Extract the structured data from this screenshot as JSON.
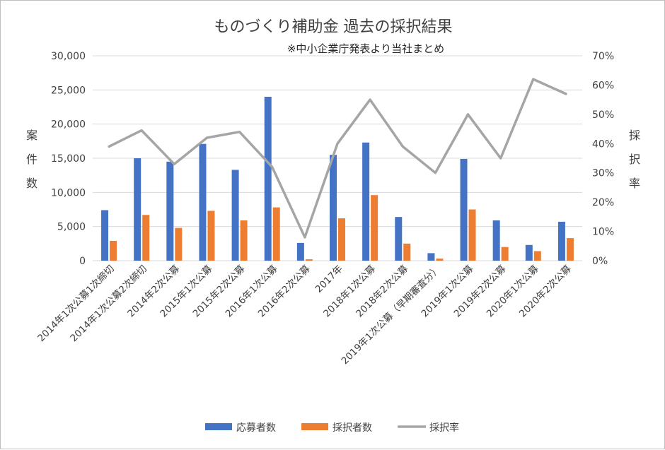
{
  "chart_data": {
    "type": "bar",
    "title": "ものづくり補助金 過去の採択結果",
    "subtitle": "※中小企業庁発表より当社まとめ",
    "ylabel": "案件数",
    "y2label": "採択率",
    "ylim": [
      0,
      30000
    ],
    "y2lim": [
      0,
      0.7
    ],
    "yticks": [
      "0",
      "5,000",
      "10,000",
      "15,000",
      "20,000",
      "25,000",
      "30,000"
    ],
    "y2ticks": [
      "0%",
      "10%",
      "20%",
      "30%",
      "40%",
      "50%",
      "60%",
      "70%"
    ],
    "grid": true,
    "legend_position": "bottom",
    "categories": [
      "2014年1次公募1次締切",
      "2014年1次公募2次締切",
      "2014年2次公募",
      "2015年1次公募",
      "2015年2次公募",
      "2016年1次公募",
      "2016年2次公募",
      "2017年",
      "2018年1次公募",
      "2018年2次公募",
      "2019年1次公募（早期審査分）",
      "2019年1次公募",
      "2019年2次公募",
      "2020年1次公募",
      "2020年2次公募"
    ],
    "series": [
      {
        "name": "応募者数",
        "type": "bar",
        "axis": "left",
        "color": "#4472c4",
        "values": [
          7400,
          15000,
          14500,
          17100,
          13300,
          24000,
          2600,
          15500,
          17300,
          6400,
          1100,
          14900,
          5900,
          2300,
          5700
        ]
      },
      {
        "name": "採択者数",
        "type": "bar",
        "axis": "left",
        "color": "#ed7d31",
        "values": [
          2900,
          6700,
          4800,
          7300,
          5900,
          7800,
          200,
          6200,
          9600,
          2500,
          300,
          7500,
          2000,
          1400,
          3300
        ]
      },
      {
        "name": "採択率",
        "type": "line",
        "axis": "right",
        "color": "#a5a5a5",
        "values": [
          0.39,
          0.445,
          0.33,
          0.42,
          0.44,
          0.32,
          0.08,
          0.4,
          0.55,
          0.39,
          0.3,
          0.5,
          0.35,
          0.62,
          0.57
        ]
      }
    ]
  }
}
